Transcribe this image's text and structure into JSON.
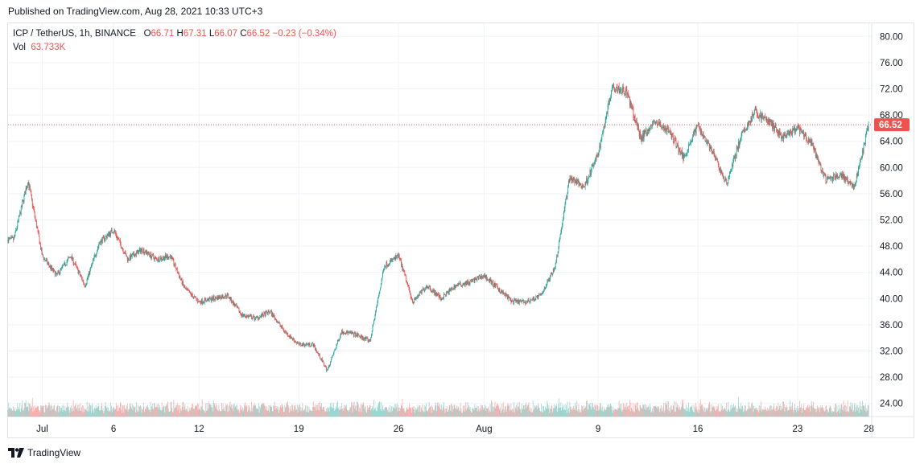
{
  "header": {
    "published": "Published on TradingView.com, Aug 28, 2021 10:33 UTC+3"
  },
  "legend": {
    "symbol": "ICP / TetherUS, 1h, BINANCE",
    "o_label": "O",
    "o_value": "66.71",
    "h_label": "H",
    "h_value": "67.31",
    "l_label": "L",
    "l_value": "66.07",
    "c_label": "C",
    "c_value": "66.52",
    "change": "−0.23 (−0.34%)",
    "vol_label": "Vol",
    "vol_value": "63.733K"
  },
  "footer": {
    "brand": "TradingView",
    "logo_icon": "tradingview-logo-icon"
  },
  "colors": {
    "up": "#26a69a",
    "down": "#ef5350",
    "grid": "#f0f3fa",
    "axis_text": "#131722",
    "price_line": "#ef5350"
  },
  "chart_data": {
    "type": "candlestick",
    "title": "ICP / TetherUS, 1h, BINANCE",
    "y_axis": {
      "min": 22,
      "max": 82,
      "ticks": [
        "80.00",
        "76.00",
        "72.00",
        "68.00",
        "64.00",
        "60.00",
        "56.00",
        "52.00",
        "48.00",
        "44.00",
        "40.00",
        "36.00",
        "32.00",
        "28.00",
        "24.00"
      ]
    },
    "x_axis": {
      "start": "2021-06-29",
      "end": "2021-08-28",
      "ticks": [
        "Jul",
        "6",
        "12",
        "19",
        "26",
        "Aug",
        "9",
        "16",
        "23",
        "28"
      ],
      "tick_dates": [
        "2021-07-01",
        "2021-07-06",
        "2021-07-12",
        "2021-07-19",
        "2021-07-26",
        "2021-08-01",
        "2021-08-09",
        "2021-08-16",
        "2021-08-23",
        "2021-08-28"
      ]
    },
    "last_price": "66.52",
    "series": [
      {
        "name": "",
        "points": [
          [
            "2021-06-29",
            49.0
          ],
          [
            "2021-06-30",
            58.0
          ],
          [
            "2021-07-01",
            46.5
          ],
          [
            "2021-07-02",
            43.5
          ],
          [
            "2021-07-03",
            46.5
          ],
          [
            "2021-07-04",
            42.0
          ],
          [
            "2021-07-05",
            48.5
          ],
          [
            "2021-07-06",
            50.5
          ],
          [
            "2021-07-07",
            46.0
          ],
          [
            "2021-07-08",
            47.5
          ],
          [
            "2021-07-09",
            46.0
          ],
          [
            "2021-07-10",
            46.5
          ],
          [
            "2021-07-11",
            41.5
          ],
          [
            "2021-07-12",
            39.5
          ],
          [
            "2021-07-13",
            40.0
          ],
          [
            "2021-07-14",
            40.5
          ],
          [
            "2021-07-15",
            37.5
          ],
          [
            "2021-07-16",
            37.0
          ],
          [
            "2021-07-17",
            38.0
          ],
          [
            "2021-07-18",
            35.0
          ],
          [
            "2021-07-19",
            33.0
          ],
          [
            "2021-07-20",
            33.0
          ],
          [
            "2021-07-21",
            29.0
          ],
          [
            "2021-07-22",
            35.0
          ],
          [
            "2021-07-23",
            34.5
          ],
          [
            "2021-07-24",
            33.5
          ],
          [
            "2021-07-25",
            45.0
          ],
          [
            "2021-07-26",
            46.5
          ],
          [
            "2021-07-27",
            39.5
          ],
          [
            "2021-07-28",
            42.0
          ],
          [
            "2021-07-29",
            40.0
          ],
          [
            "2021-07-30",
            42.0
          ],
          [
            "2021-07-31",
            42.5
          ],
          [
            "2021-08-01",
            43.5
          ],
          [
            "2021-08-02",
            41.5
          ],
          [
            "2021-08-03",
            39.5
          ],
          [
            "2021-08-04",
            39.5
          ],
          [
            "2021-08-05",
            40.5
          ],
          [
            "2021-08-06",
            45.0
          ],
          [
            "2021-08-07",
            58.5
          ],
          [
            "2021-08-08",
            57.0
          ],
          [
            "2021-08-09",
            62.0
          ],
          [
            "2021-08-10",
            72.5
          ],
          [
            "2021-08-11",
            71.5
          ],
          [
            "2021-08-12",
            64.5
          ],
          [
            "2021-08-13",
            67.0
          ],
          [
            "2021-08-14",
            65.5
          ],
          [
            "2021-08-15",
            61.5
          ],
          [
            "2021-08-16",
            66.5
          ],
          [
            "2021-08-17",
            62.5
          ],
          [
            "2021-08-18",
            57.5
          ],
          [
            "2021-08-19",
            64.5
          ],
          [
            "2021-08-20",
            68.5
          ],
          [
            "2021-08-21",
            67.0
          ],
          [
            "2021-08-22",
            64.5
          ],
          [
            "2021-08-23",
            66.0
          ],
          [
            "2021-08-24",
            63.5
          ],
          [
            "2021-08-25",
            58.0
          ],
          [
            "2021-08-26",
            59.0
          ],
          [
            "2021-08-27",
            57.0
          ],
          [
            "2021-08-28",
            66.52
          ]
        ]
      }
    ],
    "volume_axis_visible": false,
    "grid": true,
    "legend_position": "top-left"
  }
}
